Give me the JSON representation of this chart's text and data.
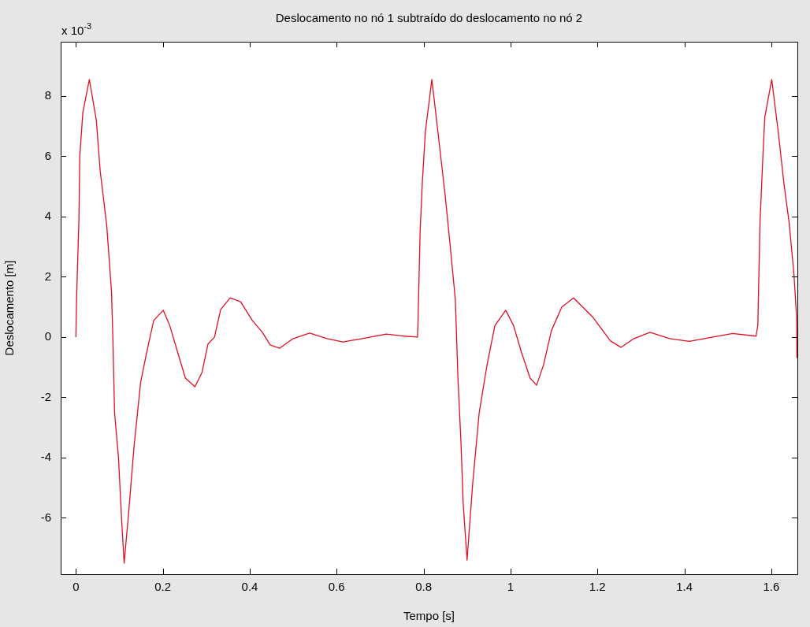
{
  "chart_data": {
    "type": "line",
    "title": "Deslocamento no nó 1 subtraído do deslocamento no nó 2",
    "xlabel": "Tempo [s]",
    "ylabel": "Deslocamento [m]",
    "annotations": [
      "x 10$^{-3}$"
    ],
    "xlim": [
      -0.035,
      1.66
    ],
    "xticks": [
      {
        "value": 0,
        "label": "0"
      },
      0.2,
      0.4,
      0.6,
      0.8,
      1,
      1.2,
      1.4,
      1.6
    ],
    "ylim": [
      -7.87,
      9.8
    ],
    "yticks": [
      -6,
      -4,
      -2,
      0,
      2,
      4,
      6,
      8
    ],
    "grid": false,
    "legend": false,
    "marker": "none",
    "line_style": "solid",
    "series": [
      {
        "color": "#dd1122",
        "x": [
          0,
          0.002,
          0.007,
          0.009,
          0.016,
          0.031,
          0.047,
          0.056,
          0.071,
          0.082,
          0.085,
          0.089,
          0.098,
          0.105,
          0.111,
          0.121,
          0.134,
          0.149,
          0.163,
          0.179,
          0.201,
          0.216,
          0.234,
          0.252,
          0.274,
          0.29,
          0.304,
          0.319,
          0.333,
          0.355,
          0.379,
          0.406,
          0.429,
          0.447,
          0.469,
          0.5,
          0.538,
          0.578,
          0.614,
          0.659,
          0.714,
          0.755,
          0.786,
          0.787,
          0.792,
          0.797,
          0.804,
          0.819,
          0.833,
          0.85,
          0.862,
          0.873,
          0.879,
          0.886,
          0.891,
          0.9,
          0.913,
          0.928,
          0.946,
          0.964,
          0.989,
          1.007,
          1.025,
          1.045,
          1.06,
          1.076,
          1.094,
          1.118,
          1.145,
          1.19,
          1.23,
          1.254,
          1.284,
          1.321,
          1.366,
          1.411,
          1.466,
          1.511,
          1.565,
          1.569,
          1.574,
          1.58,
          1.585,
          1.601,
          1.616,
          1.629,
          1.641,
          1.652,
          1.658,
          1.659
        ],
        "values": [
          0,
          1.5,
          3.9,
          6.0,
          7.45,
          8.55,
          7.2,
          5.5,
          3.7,
          1.5,
          0,
          -2.5,
          -4.0,
          -6.0,
          -7.5,
          -5.9,
          -3.6,
          -1.5,
          -0.5,
          0.55,
          0.89,
          0.38,
          -0.5,
          -1.36,
          -1.65,
          -1.18,
          -0.23,
          0,
          0.91,
          1.3,
          1.17,
          0.55,
          0.16,
          -0.26,
          -0.37,
          -0.05,
          0.13,
          -0.05,
          -0.16,
          -0.05,
          0.1,
          0.03,
          0,
          0.4,
          3.5,
          5.1,
          6.8,
          8.55,
          6.8,
          4.65,
          2.9,
          1.25,
          -1.36,
          -3.5,
          -5.5,
          -7.4,
          -4.85,
          -2.5,
          -0.92,
          0.38,
          0.89,
          0.38,
          -0.5,
          -1.36,
          -1.6,
          -0.92,
          0.21,
          1.0,
          1.3,
          0.65,
          -0.13,
          -0.34,
          -0.05,
          0.16,
          -0.05,
          -0.14,
          0,
          0.12,
          0.03,
          0.4,
          3.8,
          5.8,
          7.3,
          8.55,
          6.8,
          5.1,
          3.8,
          2.1,
          0.7,
          -0.7
        ]
      }
    ]
  }
}
